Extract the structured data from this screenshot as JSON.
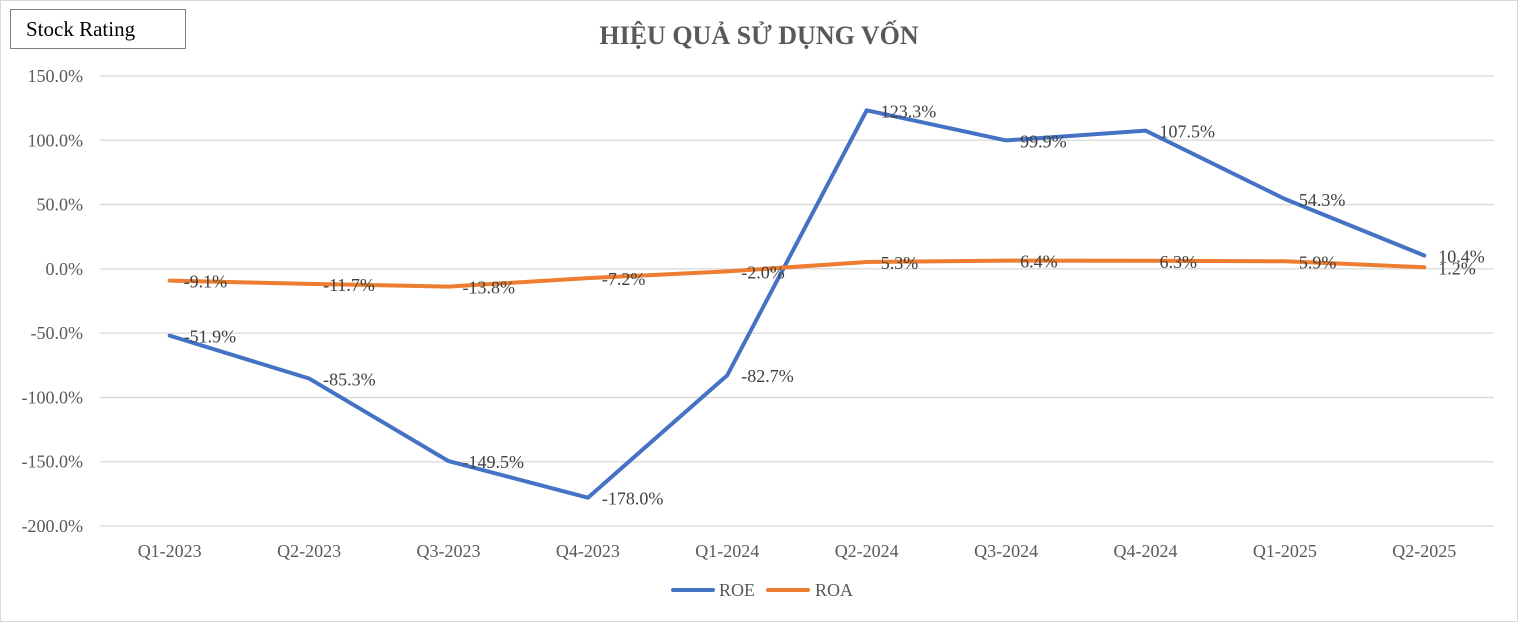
{
  "badge": {
    "label": "Stock Rating"
  },
  "colors": {
    "roe": "#4472c4",
    "roa": "#ed7d31",
    "grid": "#d9d9d9",
    "text": "#595959"
  },
  "chart_data": {
    "type": "line",
    "title": "HIỆU QUẢ SỬ DỤNG VỐN",
    "xlabel": "",
    "ylabel": "",
    "categories": [
      "Q1-2023",
      "Q2-2023",
      "Q3-2023",
      "Q4-2023",
      "Q1-2024",
      "Q2-2024",
      "Q3-2024",
      "Q4-2024",
      "Q1-2025",
      "Q2-2025"
    ],
    "ylim": [
      -200,
      150
    ],
    "yticks": [
      150,
      100,
      50,
      0,
      -50,
      -100,
      -150,
      -200
    ],
    "ytick_labels": [
      "150.0%",
      "100.0%",
      "50.0%",
      "0.0%",
      "-50.0%",
      "-100.0%",
      "-150.0%",
      "-200.0%"
    ],
    "grid": true,
    "legend_position": "bottom",
    "series": [
      {
        "name": "ROE",
        "color": "#4472c4",
        "values": [
          -51.9,
          -85.3,
          -149.5,
          -178.0,
          -82.7,
          123.3,
          99.9,
          107.5,
          54.3,
          10.4
        ],
        "labels": [
          "-51.9%",
          "-85.3%",
          "-149.5%",
          "-178.0%",
          "-82.7%",
          "123.3%",
          "99.9%",
          "107.5%",
          "54.3%",
          "10.4%"
        ]
      },
      {
        "name": "ROA",
        "color": "#ed7d31",
        "values": [
          -9.1,
          -11.7,
          -13.8,
          -7.2,
          -2.0,
          5.3,
          6.4,
          6.3,
          5.9,
          1.2
        ],
        "labels": [
          "-9.1%",
          "-11.7%",
          "-13.8%",
          "-7.2%",
          "-2.0%",
          "5.3%",
          "6.4%",
          "6.3%",
          "5.9%",
          "1.2%"
        ]
      }
    ]
  }
}
